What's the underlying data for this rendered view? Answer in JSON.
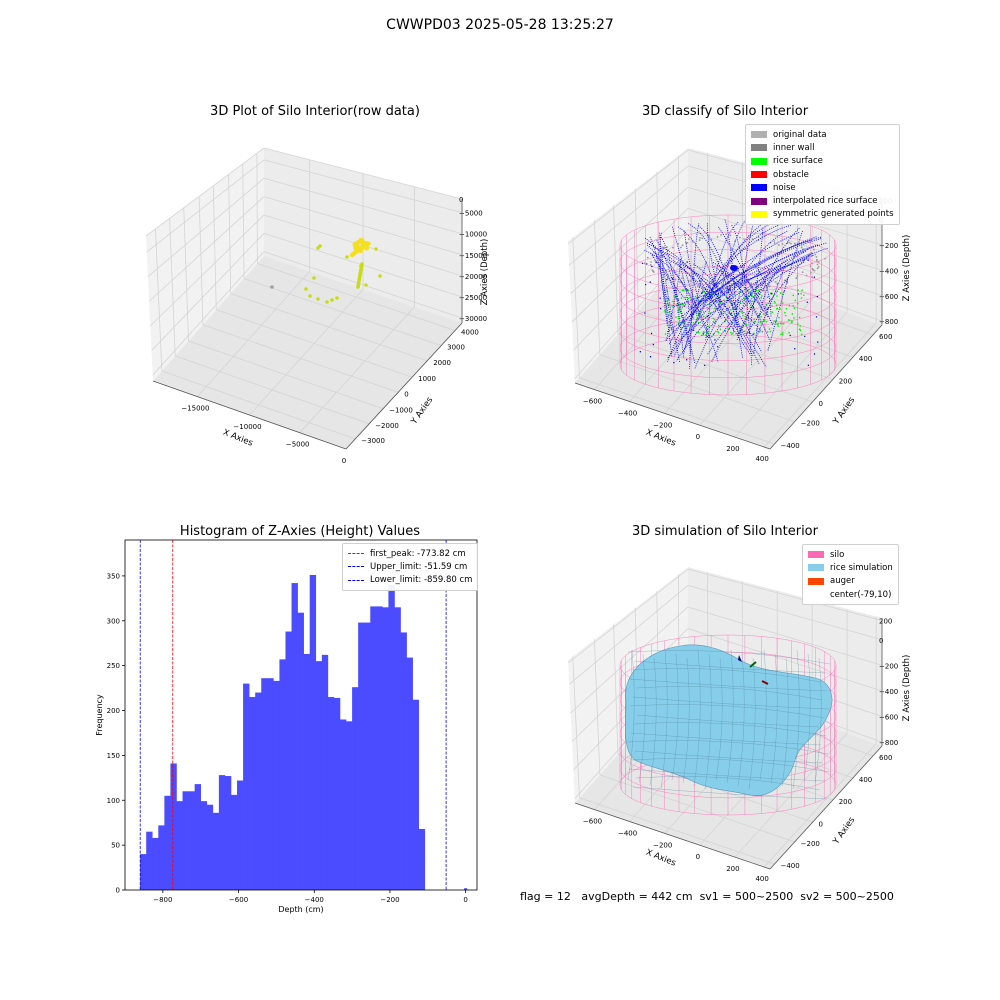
{
  "page": {
    "suptitle": "CWWPD03 2025-05-28 13:25:27",
    "footer": {
      "flag": "flag = 12",
      "avg_depth": "avgDepth = 442 cm",
      "sv1": "sv1 = 500~2500",
      "sv2": "sv2 = 500~2500"
    }
  },
  "chart_data": [
    {
      "type": "scatter",
      "title": "3D Plot of Silo Interior(row data)",
      "xlabel": "X Axies",
      "ylabel": "Y Axies",
      "zlabel": "Z Axies (Depth)",
      "x_ticks": [
        "−15000",
        "−10000",
        "−5000",
        "0"
      ],
      "y_ticks": [
        "−3000",
        "−2000",
        "−1000",
        "0",
        "1000",
        "2000",
        "3000",
        "4000"
      ],
      "z_ticks": [
        "−30000",
        "−25000",
        "−20000",
        "−15000",
        "−10000",
        "−5000",
        "0"
      ],
      "colors": {
        "points": "#c8dc14",
        "cluster": "#f5e020",
        "outlier": "#a0a0a0"
      }
    },
    {
      "type": "scatter",
      "title": "3D classify of Silo Interior",
      "xlabel": "X Axies",
      "ylabel": "Y Axies",
      "zlabel": "Z Axies (Depth)",
      "x_ticks": [
        "−600",
        "−400",
        "−200",
        "0",
        "200",
        "400"
      ],
      "y_ticks": [
        "−400",
        "−200",
        "0",
        "200",
        "400",
        "600"
      ],
      "z_ticks": [
        "−800",
        "−600",
        "−400",
        "−200",
        "0",
        "200"
      ],
      "legend": [
        {
          "label": "original data",
          "color": "#b0b0b0"
        },
        {
          "label": "inner wall",
          "color": "#808080"
        },
        {
          "label": "rice surface",
          "color": "#00ff00"
        },
        {
          "label": "obstacle",
          "color": "#ff0000"
        },
        {
          "label": "noise",
          "color": "#0000ff"
        },
        {
          "label": "interpolated rice surface",
          "color": "#800080"
        },
        {
          "label": "symmetric generated points",
          "color": "#ffff00"
        }
      ]
    },
    {
      "type": "bar",
      "title": "Histogram of Z-Axies (Height) Values",
      "xlabel": "Depth (cm)",
      "ylabel": "Frequency",
      "xlim": [
        -900,
        30
      ],
      "ylim": [
        0,
        390
      ],
      "x_ticks": [
        "−800",
        "−600",
        "−400",
        "−200",
        "0"
      ],
      "y_ticks": [
        "0",
        "50",
        "100",
        "150",
        "200",
        "250",
        "300",
        "350"
      ],
      "bin_start": -860,
      "bin_width": 16,
      "values": [
        40,
        65,
        58,
        72,
        105,
        141,
        99,
        110,
        110,
        118,
        99,
        95,
        86,
        128,
        127,
        106,
        122,
        230,
        215,
        220,
        236,
        236,
        233,
        257,
        288,
        342,
        309,
        263,
        351,
        255,
        262,
        215,
        214,
        190,
        188,
        226,
        298,
        298,
        316,
        316,
        315,
        340,
        315,
        287,
        259,
        212,
        68
      ],
      "extra_bin": {
        "x": -4,
        "width": 8,
        "value": 2
      },
      "bar_color": "#4b4bff",
      "vlines": [
        {
          "label": "first_peak: -773.82 cm",
          "x": -773.82,
          "color": "#ff0000"
        },
        {
          "label": "Upper_limit: -51.59 cm",
          "x": -51.59,
          "color": "#0000ff"
        },
        {
          "label": "Lower_limit: -859.80 cm",
          "x": -859.8,
          "color": "#0000ff"
        }
      ]
    },
    {
      "type": "surface",
      "title": "3D simulation of Silo Interior",
      "xlabel": "X Axies",
      "ylabel": "Y Axies",
      "zlabel": "Z Axies (Depth)",
      "x_ticks": [
        "−600",
        "−400",
        "−200",
        "0",
        "200",
        "400"
      ],
      "y_ticks": [
        "−400",
        "−200",
        "0",
        "200",
        "400",
        "600"
      ],
      "z_ticks": [
        "−800",
        "−600",
        "−400",
        "−200",
        "0",
        "200"
      ],
      "legend": [
        {
          "label": "silo",
          "color": "#ff69b4"
        },
        {
          "label": "rice simulation",
          "color": "#87ceeb"
        },
        {
          "label": "auger",
          "color": "#ff4500"
        },
        {
          "label": "center(-79,10)",
          "color": ""
        }
      ]
    }
  ]
}
